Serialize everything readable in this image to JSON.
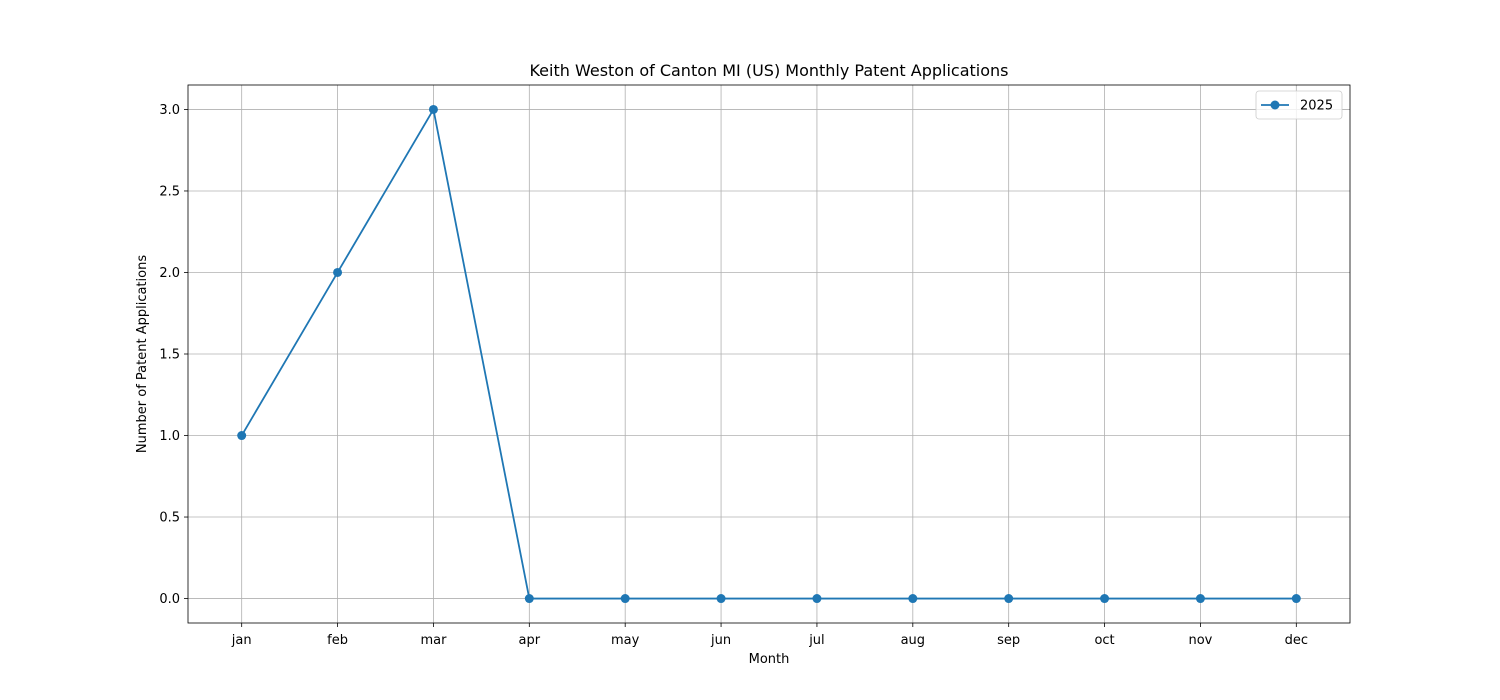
{
  "chart_data": {
    "type": "line",
    "title": "Keith Weston of Canton MI (US) Monthly Patent Applications",
    "xlabel": "Month",
    "ylabel": "Number of Patent Applications",
    "categories": [
      "jan",
      "feb",
      "mar",
      "apr",
      "may",
      "jun",
      "jul",
      "aug",
      "sep",
      "oct",
      "nov",
      "dec"
    ],
    "series": [
      {
        "name": "2025",
        "values": [
          1,
          2,
          3,
          0,
          0,
          0,
          0,
          0,
          0,
          0,
          0,
          0
        ],
        "color": "#1f77b4",
        "marker": "circle"
      }
    ],
    "ylim": [
      -0.15,
      3.15
    ],
    "yticks": [
      "0.0",
      "0.5",
      "1.0",
      "1.5",
      "2.0",
      "2.5",
      "3.0"
    ],
    "grid": true,
    "legend_position": "top-right"
  }
}
